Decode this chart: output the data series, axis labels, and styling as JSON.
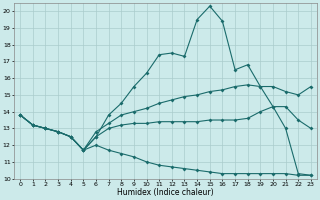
{
  "xlabel": "Humidex (Indice chaleur)",
  "bg_color": "#cceaea",
  "grid_color": "#aacccc",
  "line_color": "#1a6b6b",
  "xlim": [
    -0.5,
    23.5
  ],
  "ylim": [
    10,
    20.5
  ],
  "xticks": [
    0,
    1,
    2,
    3,
    4,
    5,
    6,
    7,
    8,
    9,
    10,
    11,
    12,
    13,
    14,
    15,
    16,
    17,
    18,
    19,
    20,
    21,
    22,
    23
  ],
  "yticks": [
    10,
    11,
    12,
    13,
    14,
    15,
    16,
    17,
    18,
    19,
    20
  ],
  "series": [
    {
      "x": [
        0,
        1,
        2,
        3,
        4,
        5,
        6,
        7,
        8,
        9,
        10,
        11,
        12,
        13,
        14,
        15,
        16,
        17,
        18,
        19,
        20,
        21,
        22,
        23
      ],
      "y": [
        13.8,
        13.2,
        13.0,
        12.8,
        12.5,
        11.7,
        12.5,
        13.8,
        14.5,
        15.5,
        16.3,
        17.4,
        17.5,
        17.3,
        19.5,
        20.3,
        19.4,
        16.5,
        16.8,
        15.5,
        14.3,
        13.0,
        10.3,
        10.2
      ]
    },
    {
      "x": [
        0,
        1,
        2,
        3,
        4,
        5,
        6,
        7,
        8,
        9,
        10,
        11,
        12,
        13,
        14,
        15,
        16,
        17,
        18,
        19,
        20,
        21,
        22,
        23
      ],
      "y": [
        13.8,
        13.2,
        13.0,
        12.8,
        12.5,
        11.7,
        12.8,
        13.3,
        13.8,
        14.0,
        14.2,
        14.5,
        14.7,
        14.9,
        15.0,
        15.2,
        15.3,
        15.5,
        15.6,
        15.5,
        15.5,
        15.2,
        15.0,
        15.5
      ]
    },
    {
      "x": [
        0,
        1,
        2,
        3,
        4,
        5,
        6,
        7,
        8,
        9,
        10,
        11,
        12,
        13,
        14,
        15,
        16,
        17,
        18,
        19,
        20,
        21,
        22,
        23
      ],
      "y": [
        13.8,
        13.2,
        13.0,
        12.8,
        12.5,
        11.7,
        12.5,
        13.0,
        13.2,
        13.3,
        13.3,
        13.4,
        13.4,
        13.4,
        13.4,
        13.5,
        13.5,
        13.5,
        13.6,
        14.0,
        14.3,
        14.3,
        13.5,
        13.0
      ]
    },
    {
      "x": [
        0,
        1,
        2,
        3,
        4,
        5,
        6,
        7,
        8,
        9,
        10,
        11,
        12,
        13,
        14,
        15,
        16,
        17,
        18,
        19,
        20,
        21,
        22,
        23
      ],
      "y": [
        13.8,
        13.2,
        13.0,
        12.8,
        12.5,
        11.7,
        12.0,
        11.7,
        11.5,
        11.3,
        11.0,
        10.8,
        10.7,
        10.6,
        10.5,
        10.4,
        10.3,
        10.3,
        10.3,
        10.3,
        10.3,
        10.3,
        10.2,
        10.2
      ]
    }
  ]
}
